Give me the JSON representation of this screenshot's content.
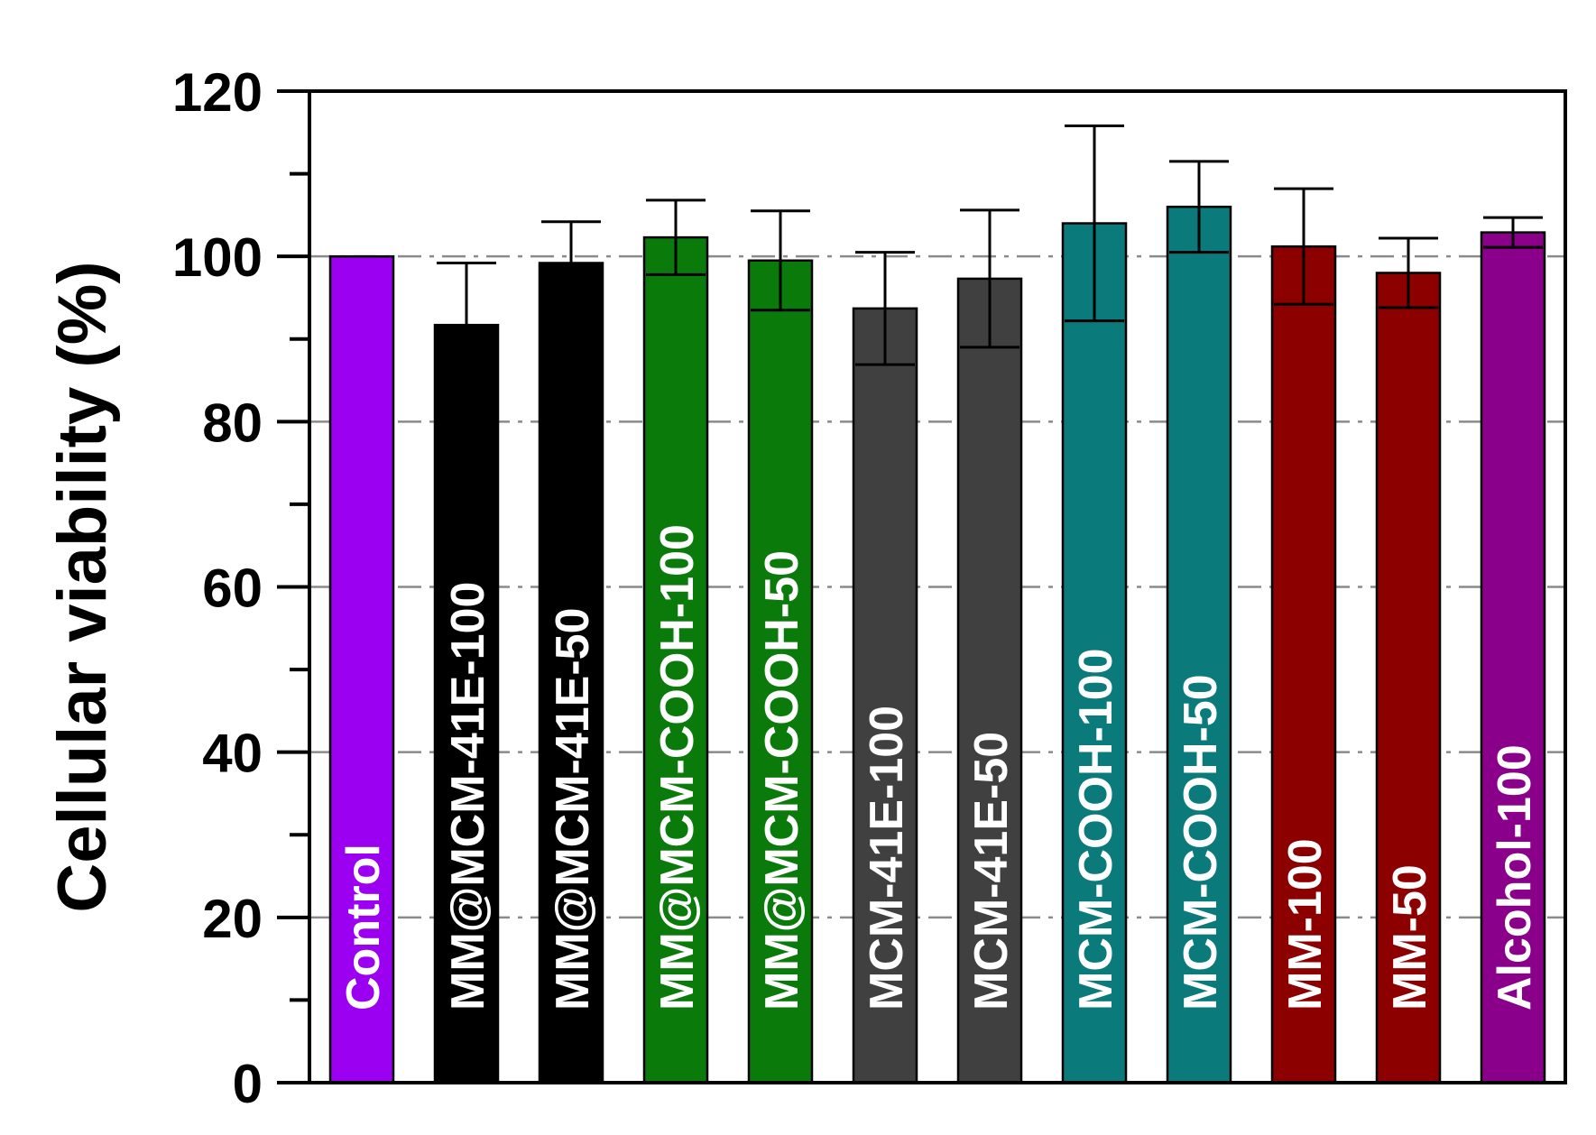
{
  "chart_data": {
    "type": "bar",
    "title": "",
    "xlabel": "",
    "ylabel": "Cellular viability (%)",
    "ylim": [
      0,
      120
    ],
    "yticks": [
      0,
      20,
      40,
      60,
      80,
      100,
      120
    ],
    "grid": "horizontal dash-dot at major ticks",
    "legend": "none",
    "reference_line": 100,
    "categories": [
      "Control",
      "MM@MCM-41E-100",
      "MM@MCM-41E-50",
      "MM@MCM-COOH-100",
      "MM@MCM-COOH-50",
      "MCM-41E-100",
      "MCM-41E-50",
      "MCM-COOH-100",
      "MCM-COOH-50",
      "MM-100",
      "MM-50",
      "Alcohol-100"
    ],
    "values": [
      100,
      91.7,
      99.2,
      102.3,
      99.5,
      93.7,
      97.3,
      104.0,
      106.0,
      101.2,
      98.0,
      102.9
    ],
    "errors": [
      0,
      7.5,
      5.0,
      4.5,
      6.0,
      6.8,
      8.3,
      11.8,
      5.5,
      7.0,
      4.2,
      1.8
    ],
    "colors": [
      "#9b00f0",
      "#000000",
      "#000000",
      "#0a7a0a",
      "#0a7a0a",
      "#404040",
      "#404040",
      "#0a7a7a",
      "#0a7a7a",
      "#8c0000",
      "#8c0000",
      "#8a008a"
    ]
  }
}
